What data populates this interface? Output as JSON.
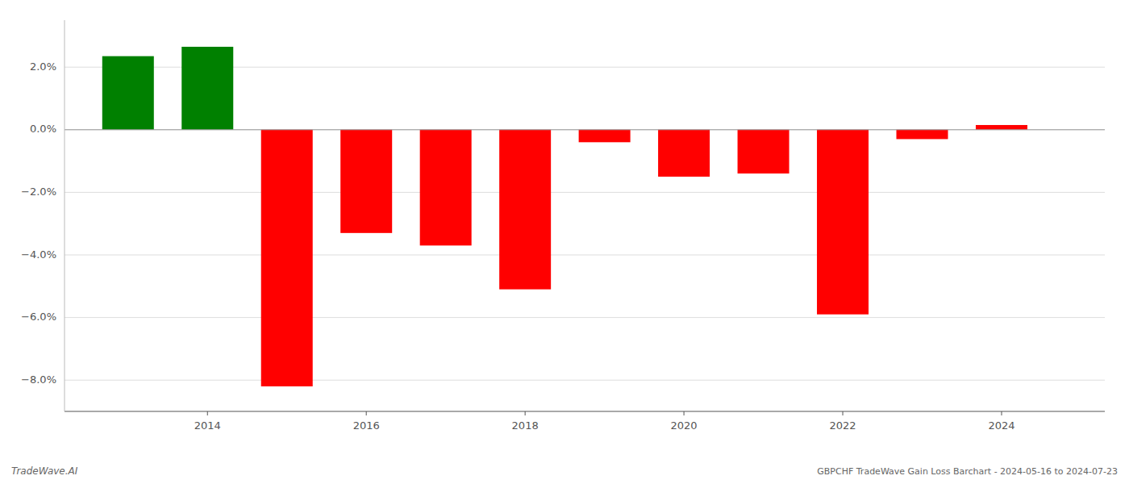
{
  "chart_data": {
    "type": "bar",
    "x": [
      2013,
      2014,
      2015,
      2016,
      2017,
      2018,
      2019,
      2020,
      2021,
      2022,
      2023,
      2024
    ],
    "values": [
      2.35,
      2.65,
      -8.2,
      -3.3,
      -3.7,
      -5.1,
      -0.4,
      -1.5,
      -1.4,
      -5.9,
      -0.3,
      0.15
    ],
    "colors": [
      "#008000",
      "#008000",
      "#ff0000",
      "#ff0000",
      "#ff0000",
      "#ff0000",
      "#ff0000",
      "#ff0000",
      "#ff0000",
      "#ff0000",
      "#ff0000",
      "#ff0000"
    ],
    "xlim": [
      2012.2,
      2025.3
    ],
    "xticks": [
      2014,
      2016,
      2018,
      2020,
      2022,
      2024
    ],
    "ylim": [
      -9.0,
      3.5
    ],
    "yticks": [
      {
        "value": -8.0,
        "label": "−8.0%"
      },
      {
        "value": -6.0,
        "label": "−6.0%"
      },
      {
        "value": -4.0,
        "label": "−4.0%"
      },
      {
        "value": -2.0,
        "label": "−2.0%"
      },
      {
        "value": 0.0,
        "label": "0.0%"
      },
      {
        "value": 2.0,
        "label": "2.0%"
      }
    ],
    "grid": true,
    "annotations": [
      "TradeWave.AI",
      "GBPCHF TradeWave Gain Loss Barchart - 2024-05-16 to 2024-07-23"
    ]
  }
}
